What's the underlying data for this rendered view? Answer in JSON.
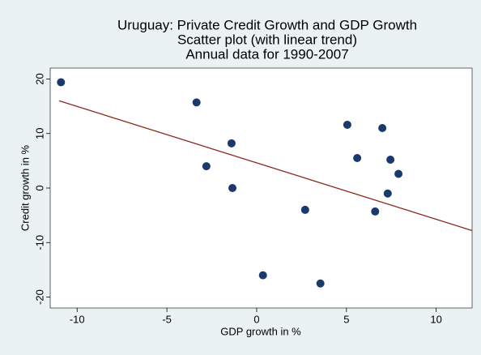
{
  "chart_data": {
    "type": "scatter",
    "title": [
      "Uruguay: Private Credit Growth and GDP Growth",
      "Scatter plot (with linear trend)",
      "Annual data for 1990-2007"
    ],
    "x_label": "GDP growth in %",
    "y_label": "Credit growth in %",
    "x": [
      -10.9,
      -3.35,
      -2.8,
      -1.4,
      -1.35,
      0.35,
      2.7,
      3.55,
      5.05,
      5.6,
      7.0,
      7.45,
      7.9,
      7.3,
      6.6
    ],
    "y": [
      19.4,
      15.7,
      4.0,
      8.2,
      0.0,
      -16.0,
      -4.0,
      -17.5,
      11.6,
      5.5,
      11.0,
      5.2,
      2.6,
      -1.0,
      -4.3
    ],
    "color": "#1a3a6b",
    "trend": {
      "x": [
        -11,
        12
      ],
      "y": [
        16,
        -7.8
      ],
      "color": "#8b2a1e"
    },
    "xlim": [
      -11.5,
      12
    ],
    "ylim": [
      -22,
      22
    ],
    "xticks": [
      -10,
      -5,
      0,
      5,
      10
    ],
    "yticks": [
      -20,
      -10,
      0,
      10,
      20
    ],
    "grid": false
  }
}
